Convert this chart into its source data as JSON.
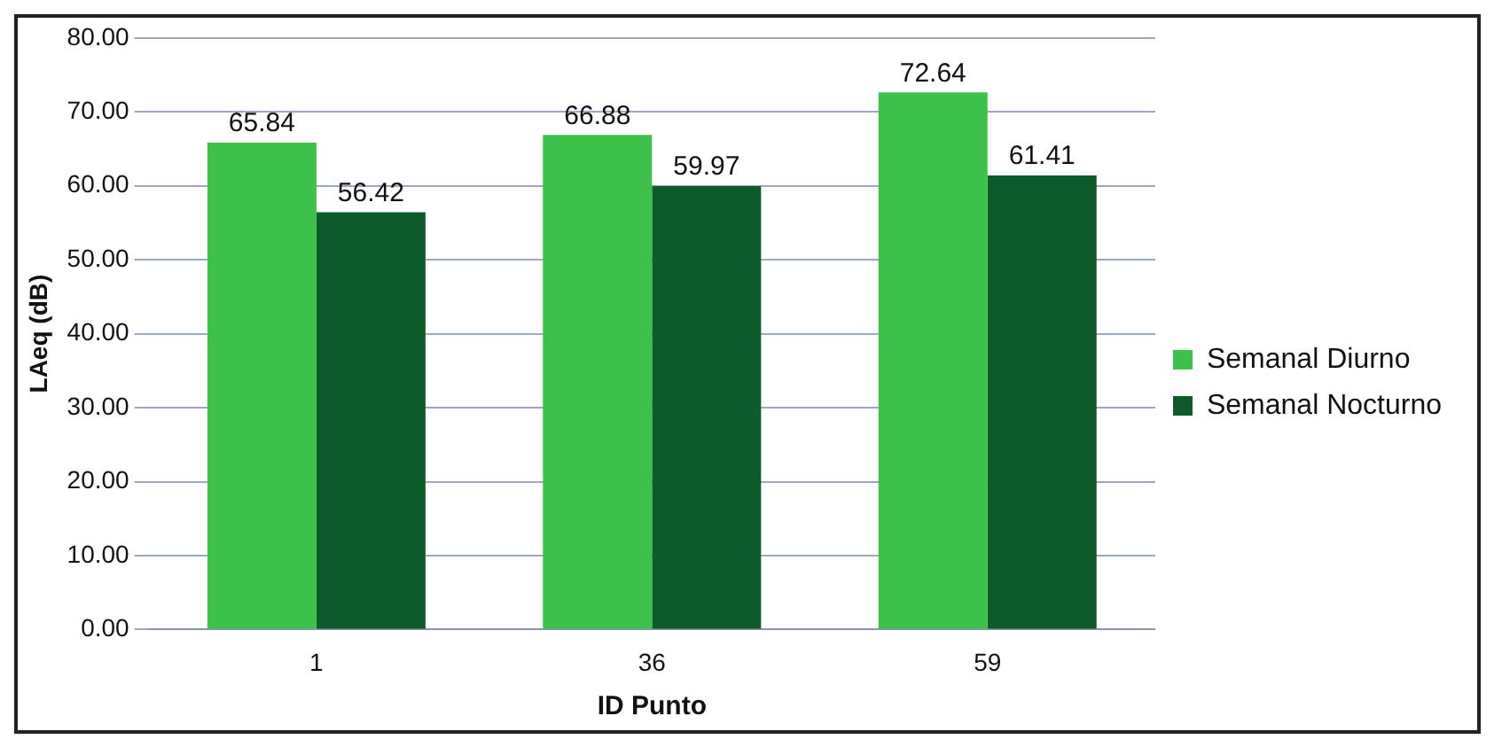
{
  "chart_data": {
    "type": "bar",
    "xlabel": "ID Punto",
    "ylabel": "LAeq (dB)",
    "categories": [
      "1",
      "36",
      "59"
    ],
    "series": [
      {
        "name": "Semanal Diurno",
        "color": "#3cc24a",
        "values": [
          65.84,
          66.88,
          72.64
        ]
      },
      {
        "name": "Semanal Nocturno",
        "color": "#0d5a2a",
        "values": [
          56.42,
          59.97,
          61.41
        ]
      }
    ],
    "ylim": [
      0,
      80
    ],
    "yticks": [
      {
        "value": 0,
        "label": "0.00"
      },
      {
        "value": 10,
        "label": "10.00"
      },
      {
        "value": 20,
        "label": "20.00"
      },
      {
        "value": 30,
        "label": "30.00"
      },
      {
        "value": 40,
        "label": "40.00"
      },
      {
        "value": 50,
        "label": "50.00"
      },
      {
        "value": 60,
        "label": "60.00"
      },
      {
        "value": 70,
        "label": "70.00"
      },
      {
        "value": 80,
        "label": "80.00"
      }
    ],
    "grid": "y",
    "legend": "right",
    "data_labels": true
  }
}
